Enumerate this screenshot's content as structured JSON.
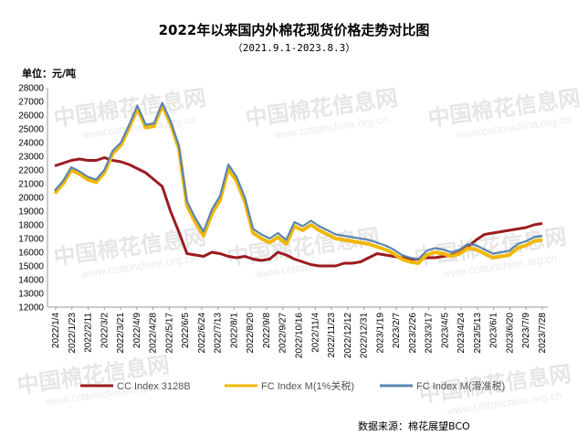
{
  "title": "2022年以来国内外棉花现货价格走势对比图",
  "subtitle": "（2021.9.1-2023.8.3）",
  "unit_label": "单位：元/吨",
  "source": "数据来源：棉花展望BCO",
  "watermark": {
    "cn": "中国棉花信息网",
    "en": "www.cottonchina.org.cn"
  },
  "colors": {
    "cc": "#9b1b1f",
    "fc1": "#f2b705",
    "fc2": "#5a86b0"
  },
  "chart_data": {
    "type": "line",
    "ylim": [
      12000,
      28000
    ],
    "y_ticks": [
      12000,
      13000,
      14000,
      15000,
      16000,
      17000,
      18000,
      19000,
      20000,
      21000,
      22000,
      23000,
      24000,
      25000,
      26000,
      27000,
      28000
    ],
    "x_ticks": [
      "2022/1/4",
      "2022/1/23",
      "2022/2/11",
      "2022/3/2",
      "2022/3/21",
      "2022/4/9",
      "2022/4/28",
      "2022/5/17",
      "2022/6/5",
      "2022/6/24",
      "2022/7/13",
      "2022/8/1",
      "2022/8/20",
      "2022/9/8",
      "2022/9/27",
      "2022/10/16",
      "2022/11/4",
      "2022/11/23",
      "2022/12/12",
      "2022/12/31",
      "2023/1/19",
      "2023/2/7",
      "2023/2/26",
      "2023/3/17",
      "2023/4/5",
      "2023/4/24",
      "2023/5/13",
      "2023/6/1",
      "2023/6/20",
      "2023/7/9",
      "2023/7/28"
    ],
    "series": [
      {
        "name": "CC Index 3128B",
        "values": [
          22300,
          22500,
          22700,
          22800,
          22700,
          22700,
          22900,
          22700,
          22600,
          22400,
          22100,
          21800,
          21300,
          20800,
          19000,
          17500,
          15900,
          15800,
          15700,
          16000,
          15900,
          15700,
          15600,
          15700,
          15500,
          15400,
          15500,
          16000,
          15800,
          15500,
          15300,
          15100,
          15000,
          15000,
          15000,
          15200,
          15200,
          15300,
          15600,
          15900,
          15800,
          15700,
          15600,
          15500,
          15500,
          15600,
          15600,
          15700,
          15800,
          16000,
          16400,
          16900,
          17300,
          17400,
          17500,
          17600,
          17700,
          17800,
          18000,
          18100
        ]
      },
      {
        "name": "FC Index M(1%关税)",
        "values": [
          20300,
          21000,
          22000,
          21700,
          21300,
          21100,
          21800,
          23200,
          23800,
          25100,
          26500,
          25100,
          25200,
          26700,
          25400,
          23600,
          19400,
          18200,
          17200,
          18800,
          19800,
          22100,
          21200,
          19700,
          17400,
          17000,
          16700,
          17100,
          16600,
          17900,
          17600,
          18000,
          17600,
          17300,
          17000,
          16900,
          16800,
          16700,
          16600,
          16400,
          16200,
          15900,
          15500,
          15300,
          15200,
          15800,
          16000,
          15900,
          15700,
          15900,
          16300,
          16200,
          15900,
          15600,
          15700,
          15800,
          16300,
          16500,
          16800,
          16900
        ]
      },
      {
        "name": "FC Index M(滑准税)",
        "values": [
          20500,
          21200,
          22200,
          21900,
          21500,
          21300,
          22000,
          23400,
          24000,
          25300,
          26700,
          25300,
          25400,
          26900,
          25600,
          23800,
          19700,
          18500,
          17500,
          19100,
          20100,
          22400,
          21500,
          20000,
          17700,
          17300,
          17000,
          17400,
          16900,
          18200,
          17900,
          18300,
          17900,
          17600,
          17300,
          17200,
          17100,
          17000,
          16900,
          16700,
          16500,
          16200,
          15800,
          15600,
          15500,
          16100,
          16300,
          16200,
          16000,
          16200,
          16600,
          16500,
          16200,
          15900,
          16000,
          16100,
          16600,
          16800,
          17100,
          17200
        ]
      }
    ],
    "grid": false,
    "legend_position": "bottom"
  }
}
